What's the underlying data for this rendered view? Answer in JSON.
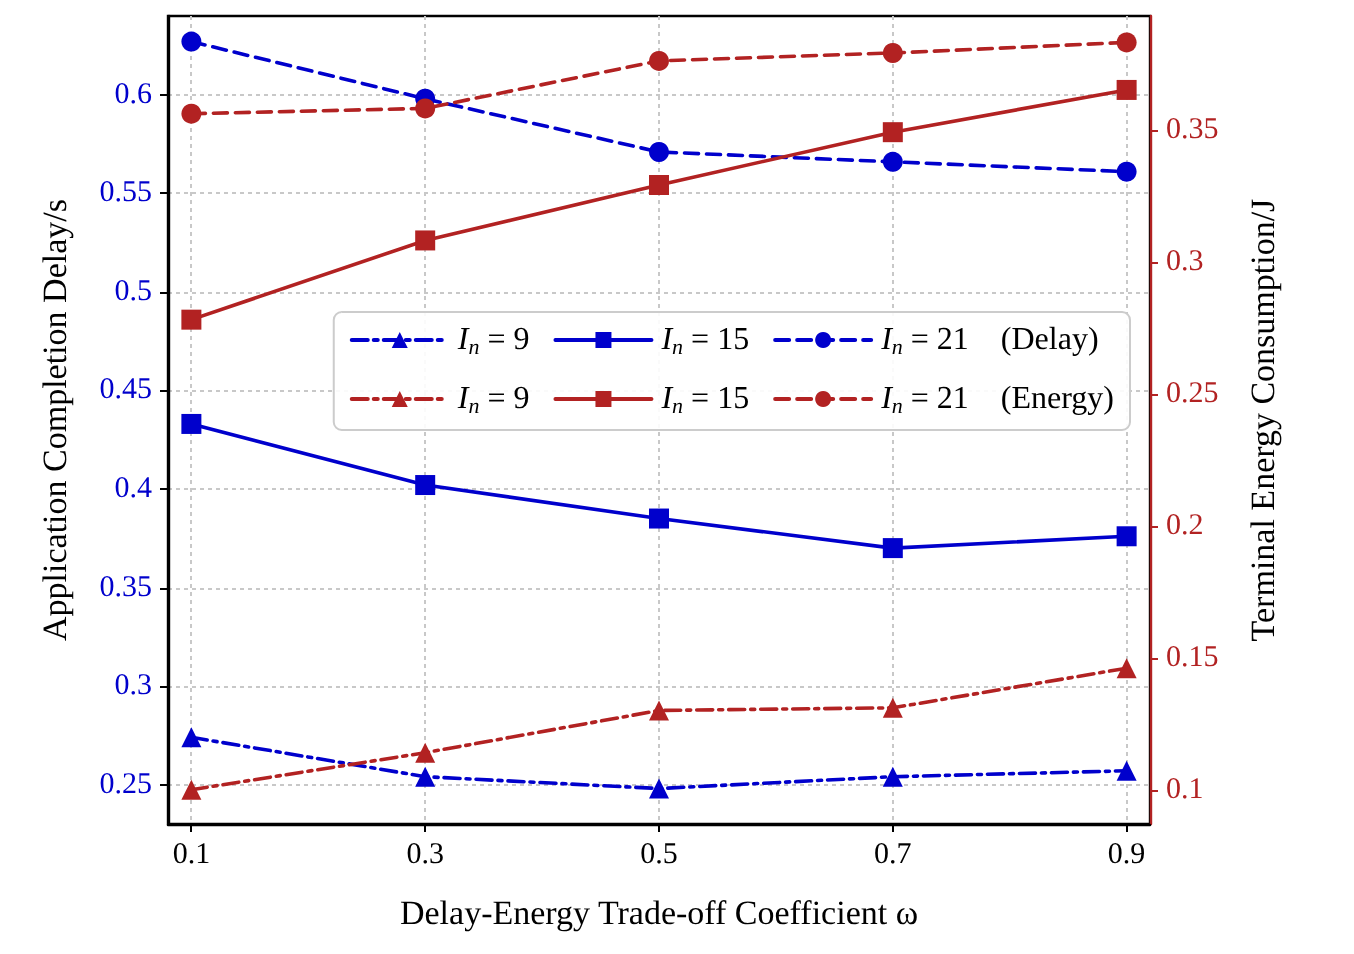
{
  "chart_data": {
    "type": "line",
    "xlabel": "Delay-Energy Trade-off Coefficient ω",
    "ylabel": "Application Completion Delay/s",
    "y2label": "Terminal Energy Consumption/J",
    "x": [
      0.1,
      0.3,
      0.5,
      0.7,
      0.9
    ],
    "xlim": [
      0.08,
      0.92
    ],
    "xticks": [
      0.1,
      0.3,
      0.5,
      0.7,
      0.9
    ],
    "ylim": [
      0.23,
      0.64
    ],
    "yticks": [
      0.25,
      0.3,
      0.35,
      0.4,
      0.45,
      0.5,
      0.55,
      0.6
    ],
    "y2lim": [
      0.087,
      0.393
    ],
    "y2ticks": [
      0.1,
      0.15,
      0.2,
      0.25,
      0.3,
      0.35
    ],
    "grid": true,
    "legend": "center right",
    "series": [
      {
        "name": "I$_{n}$ = 9",
        "color": "#0000cc",
        "marker": "triangle",
        "line_style": "dashdot",
        "values": [
          0.274,
          0.254,
          0.248,
          0.254,
          0.257
        ]
      },
      {
        "name": "I$_{n}$ = 15",
        "color": "#0000cc",
        "marker": "square",
        "line_style": "solid",
        "values": [
          0.433,
          0.402,
          0.385,
          0.37,
          0.376
        ]
      },
      {
        "name": "I$_{n}$ = 21    (Delay)",
        "color": "#0000cc",
        "marker": "circle",
        "line_style": "dashed",
        "values": [
          0.627,
          0.598,
          0.571,
          0.566,
          0.561
        ]
      },
      {
        "name": "I$_{n}$ = 9",
        "color": "#b22222",
        "marker": "triangle",
        "line_style": "dashdot",
        "axis": "y2",
        "values": [
          0.1,
          0.114,
          0.13,
          0.131,
          0.146
        ]
      },
      {
        "name": "I$_{n}$ = 15",
        "color": "#b22222",
        "marker": "square",
        "line_style": "solid",
        "axis": "y2",
        "values": [
          0.278,
          0.308,
          0.329,
          0.349,
          0.365
        ]
      },
      {
        "name": "I$_{n}$ = 21    (Energy)",
        "color": "#b22222",
        "marker": "circle",
        "line_style": "dashed",
        "axis": "y2",
        "values": [
          0.356,
          0.358,
          0.376,
          0.379,
          0.383
        ]
      }
    ]
  }
}
